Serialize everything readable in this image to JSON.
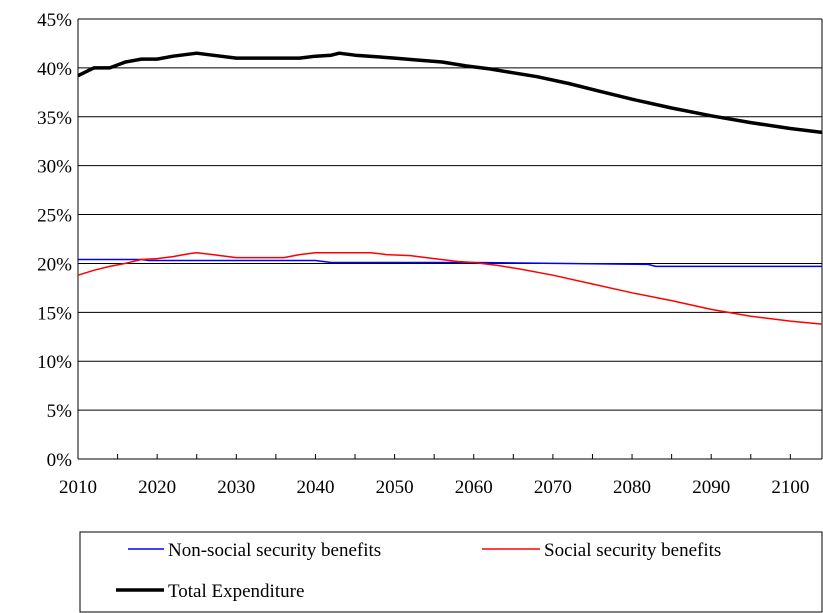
{
  "chart_data": {
    "type": "line",
    "title": "",
    "xlabel": "",
    "ylabel": "",
    "xlim": [
      2010,
      2104
    ],
    "ylim": [
      0,
      45
    ],
    "grid": "horizontal",
    "legend_position": "bottom",
    "y_ticks": [
      "0%",
      "5%",
      "10%",
      "15%",
      "20%",
      "25%",
      "30%",
      "35%",
      "40%",
      "45%"
    ],
    "y_tick_values": [
      0,
      5,
      10,
      15,
      20,
      25,
      30,
      35,
      40,
      45
    ],
    "x_ticks": [
      "2010",
      "2020",
      "2030",
      "2040",
      "2050",
      "2060",
      "2070",
      "2080",
      "2090",
      "2100"
    ],
    "x_tick_values": [
      2010,
      2020,
      2030,
      2040,
      2050,
      2060,
      2070,
      2080,
      2090,
      2100
    ],
    "series": [
      {
        "name": "Non-social security benefits",
        "color": "#0000ff",
        "points": [
          [
            2010,
            20.4
          ],
          [
            2018,
            20.4
          ],
          [
            2019,
            20.3
          ],
          [
            2040,
            20.3
          ],
          [
            2042,
            20.1
          ],
          [
            2060,
            20.1
          ],
          [
            2082,
            19.9
          ],
          [
            2083,
            19.7
          ],
          [
            2104,
            19.7
          ]
        ]
      },
      {
        "name": "Social security benefits",
        "color": "#ff0000",
        "points": [
          [
            2010,
            18.8
          ],
          [
            2012,
            19.3
          ],
          [
            2014,
            19.7
          ],
          [
            2016,
            20.0
          ],
          [
            2018,
            20.4
          ],
          [
            2020,
            20.5
          ],
          [
            2022,
            20.7
          ],
          [
            2024,
            21.0
          ],
          [
            2025,
            21.1
          ],
          [
            2027,
            20.9
          ],
          [
            2030,
            20.6
          ],
          [
            2036,
            20.6
          ],
          [
            2038,
            20.9
          ],
          [
            2040,
            21.1
          ],
          [
            2047,
            21.1
          ],
          [
            2049,
            20.9
          ],
          [
            2052,
            20.8
          ],
          [
            2055,
            20.5
          ],
          [
            2058,
            20.2
          ],
          [
            2060,
            20.1
          ],
          [
            2063,
            19.8
          ],
          [
            2066,
            19.4
          ],
          [
            2070,
            18.8
          ],
          [
            2075,
            17.9
          ],
          [
            2080,
            17.0
          ],
          [
            2085,
            16.2
          ],
          [
            2090,
            15.3
          ],
          [
            2095,
            14.6
          ],
          [
            2100,
            14.1
          ],
          [
            2104,
            13.8
          ]
        ]
      },
      {
        "name": "Total Expenditure",
        "color": "#000000",
        "points": [
          [
            2010,
            39.2
          ],
          [
            2012,
            40.0
          ],
          [
            2014,
            40.0
          ],
          [
            2016,
            40.6
          ],
          [
            2018,
            40.9
          ],
          [
            2020,
            40.9
          ],
          [
            2022,
            41.2
          ],
          [
            2024,
            41.4
          ],
          [
            2025,
            41.5
          ],
          [
            2027,
            41.3
          ],
          [
            2030,
            41.0
          ],
          [
            2038,
            41.0
          ],
          [
            2040,
            41.2
          ],
          [
            2042,
            41.3
          ],
          [
            2043,
            41.5
          ],
          [
            2045,
            41.3
          ],
          [
            2050,
            41.0
          ],
          [
            2053,
            40.8
          ],
          [
            2056,
            40.6
          ],
          [
            2059,
            40.2
          ],
          [
            2062,
            39.9
          ],
          [
            2065,
            39.5
          ],
          [
            2068,
            39.1
          ],
          [
            2072,
            38.4
          ],
          [
            2076,
            37.6
          ],
          [
            2080,
            36.8
          ],
          [
            2085,
            35.9
          ],
          [
            2090,
            35.1
          ],
          [
            2095,
            34.4
          ],
          [
            2100,
            33.8
          ],
          [
            2104,
            33.4
          ]
        ]
      }
    ]
  }
}
